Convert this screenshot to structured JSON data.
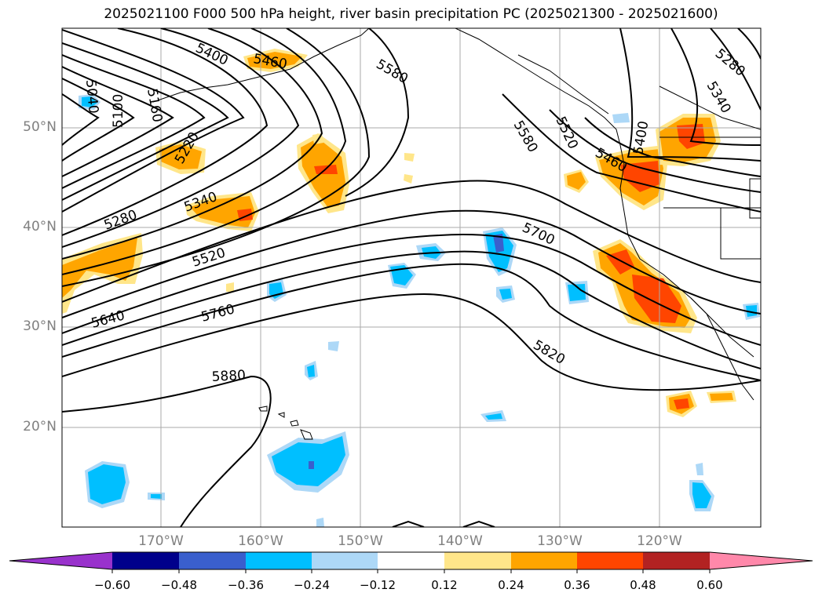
{
  "title": "2025021100 F000 500 hPa height, river basin precipitation PC (2025021300 - 2025021600)",
  "lat_labels": [
    "50°N",
    "40°N",
    "30°N",
    "20°N"
  ],
  "lon_labels": [
    "170°W",
    "160°W",
    "150°W",
    "140°W",
    "130°W",
    "120°W"
  ],
  "colorbar": {
    "ticks": [
      "−0.60",
      "−0.48",
      "−0.36",
      "−0.24",
      "−0.12",
      "0.12",
      "0.24",
      "0.36",
      "0.48",
      "0.60"
    ],
    "colors": [
      "#9932CC",
      "#00008B",
      "#3A5FCD",
      "#00BFFF",
      "#ADD8F7",
      "#FFFFFF",
      "#FFE68A",
      "#FFA500",
      "#FF4500",
      "#B22222",
      "#FF88AA"
    ]
  },
  "contour_labels": [
    "5400",
    "5460",
    "5580",
    "5040",
    "5100",
    "5160",
    "5220",
    "5280",
    "5340",
    "5520",
    "5640",
    "5760",
    "5880",
    "5580",
    "5520",
    "5460",
    "5400",
    "5340",
    "5280",
    "5700",
    "5820"
  ],
  "palette": {
    "pos1": "#FFE68A",
    "pos2": "#FFA500",
    "pos3": "#FF4500",
    "neg1": "#ADD8F7",
    "neg2": "#00BFFF",
    "neg3": "#3A5FCD",
    "neg4": "#00008B"
  }
}
